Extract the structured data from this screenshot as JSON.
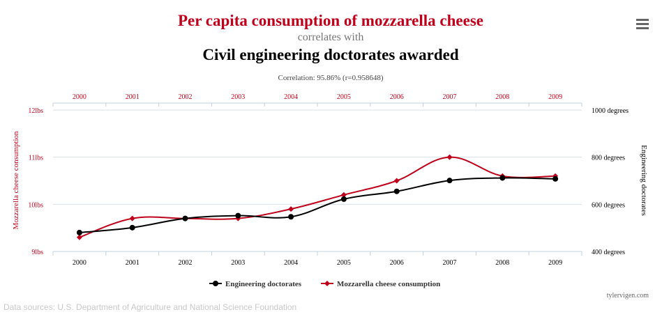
{
  "title": "Per capita consumption of mozzarella cheese",
  "correlates": "correlates with",
  "subtitle": "Civil engineering doctorates awarded",
  "correlation": "Correlation: 95.86% (r=0.958648)",
  "source": "Data sources: U.S. Department of Agriculture and National Science Foundation",
  "credit": "tylervigen.com",
  "menu_icon": "hamburger-menu-icon",
  "colors": {
    "red": "#c0001b",
    "black": "#000000",
    "grid": "#d8e0e6",
    "axis": "#c0d0e0",
    "gray": "#666666",
    "source": "#cccccc"
  },
  "chart_data": {
    "type": "line",
    "categories": [
      "2000",
      "2001",
      "2002",
      "2003",
      "2004",
      "2005",
      "2006",
      "2007",
      "2008",
      "2009"
    ],
    "series": [
      {
        "name": "Engineering doctorates",
        "axis": "right",
        "color": "#000000",
        "marker": "circle",
        "values": [
          480,
          501,
          540,
          552,
          547,
          622,
          655,
          701,
          712,
          708
        ]
      },
      {
        "name": "Mozzarella cheese consumption",
        "axis": "left",
        "color": "#c0001b",
        "marker": "diamond",
        "values": [
          9.3,
          9.7,
          9.7,
          9.7,
          9.9,
          10.2,
          10.5,
          11.0,
          10.6,
          10.6
        ]
      }
    ],
    "y_left": {
      "label": "Mozzarella cheese consumption",
      "ticks": [
        "9lbs",
        "10lbs",
        "11lbs",
        "12lbs"
      ],
      "range": [
        9,
        12
      ]
    },
    "y_right": {
      "label": "Engineering doctorates",
      "ticks": [
        "400 degrees",
        "600 degrees",
        "800 degrees",
        "1000 degrees"
      ],
      "range": [
        400,
        1000
      ]
    },
    "legend_position": "bottom-center",
    "grid": true
  }
}
